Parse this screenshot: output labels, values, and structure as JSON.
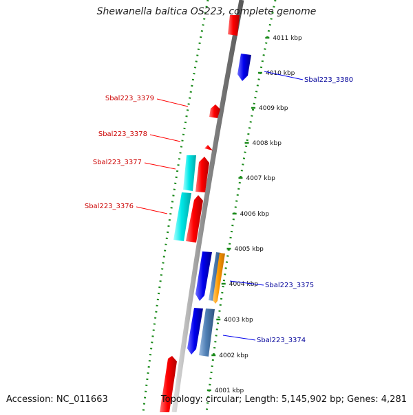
{
  "title": "Shewanella baltica OS223, complete genome",
  "footer": {
    "accession": "Accession: NC_011663",
    "summary": "Topology: circular; Length: 5,145,902 bp; Genes: 4,281"
  },
  "ticks": [
    {
      "label": "4011 kbp",
      "kbp": 4011
    },
    {
      "label": "4010 kbp",
      "kbp": 4010
    },
    {
      "label": "4009 kbp",
      "kbp": 4009
    },
    {
      "label": "4008 kbp",
      "kbp": 4008
    },
    {
      "label": "4007 kbp",
      "kbp": 4007
    },
    {
      "label": "4006 kbp",
      "kbp": 4006
    },
    {
      "label": "4005 kbp",
      "kbp": 4005
    },
    {
      "label": "4004 kbp",
      "kbp": 4004
    },
    {
      "label": "4003 kbp",
      "kbp": 4003
    },
    {
      "label": "4002 kbp",
      "kbp": 4002
    },
    {
      "label": "4001 kbp",
      "kbp": 4001
    }
  ],
  "genes_reverse_labels": [
    {
      "label": "Sbal223_3379"
    },
    {
      "label": "Sbal223_3378"
    },
    {
      "label": "Sbal223_3377"
    },
    {
      "label": "Sbal223_3376"
    }
  ],
  "genes_forward_labels": [
    {
      "label": "Sbal223_3380"
    },
    {
      "label": "Sbal223_3375"
    },
    {
      "label": "Sbal223_3374"
    }
  ],
  "colors": {
    "backbone": "#8c8c8c",
    "tick": "#1a8a1a",
    "reverse_gene": "#ff0000",
    "forward_gene": "#0000ee",
    "rna": "#00e5e5",
    "steelblue": "#4f7fb5",
    "orange": "#ff9900",
    "reverse_label": "#cc0000",
    "forward_label": "#000099"
  }
}
